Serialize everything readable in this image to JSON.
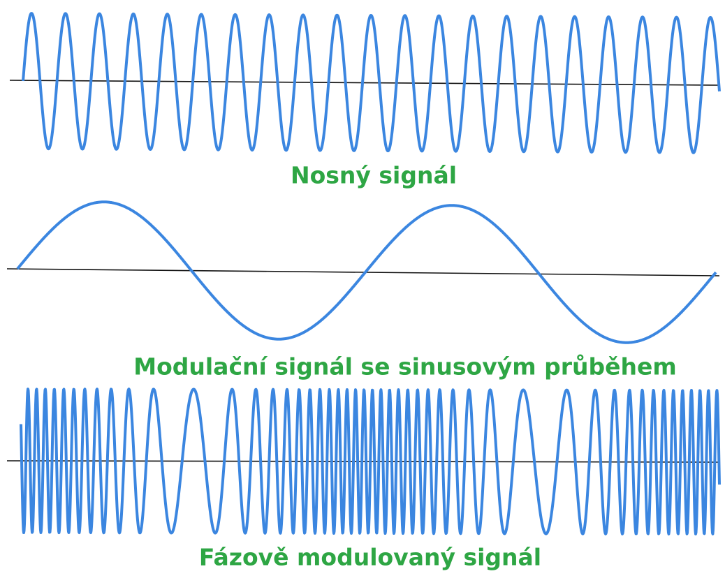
{
  "labels": [
    "Nosný signál",
    "Modulační signál se sinusovým průběhem",
    "Fázově modulovaný signál"
  ]
}
